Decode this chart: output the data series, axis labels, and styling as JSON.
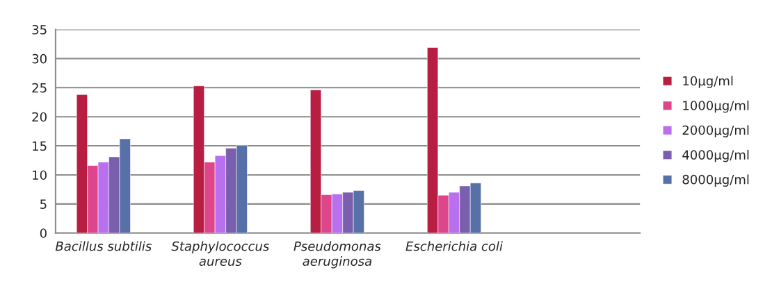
{
  "chart_data": {
    "type": "bar",
    "categories": [
      "Bacillus subtilis",
      "Staphylococcus aureus",
      "Pseudomonas aeruginosa",
      "Escherichia coli",
      null
    ],
    "series": [
      {
        "name": "10µg/ml",
        "color": "#b81e42",
        "values": [
          23.8,
          25.3,
          24.6,
          31.9,
          null
        ]
      },
      {
        "name": "1000µg/ml",
        "color": "#de468b",
        "values": [
          11.6,
          12.2,
          6.6,
          6.5,
          null
        ]
      },
      {
        "name": "2000µg/ml",
        "color": "#b870ee",
        "values": [
          12.2,
          13.3,
          6.7,
          7.0,
          null
        ]
      },
      {
        "name": "4000µg/ml",
        "color": "#7a5fae",
        "values": [
          13.1,
          14.6,
          7.0,
          8.1,
          null
        ]
      },
      {
        "name": "8000µg/ml",
        "color": "#5870a8",
        "values": [
          16.2,
          15.1,
          7.3,
          8.6,
          null
        ]
      }
    ],
    "ylim": [
      0,
      35
    ],
    "yticks": [
      0,
      5,
      10,
      15,
      20,
      25,
      30,
      35
    ],
    "grid": "y",
    "legend": "right"
  }
}
